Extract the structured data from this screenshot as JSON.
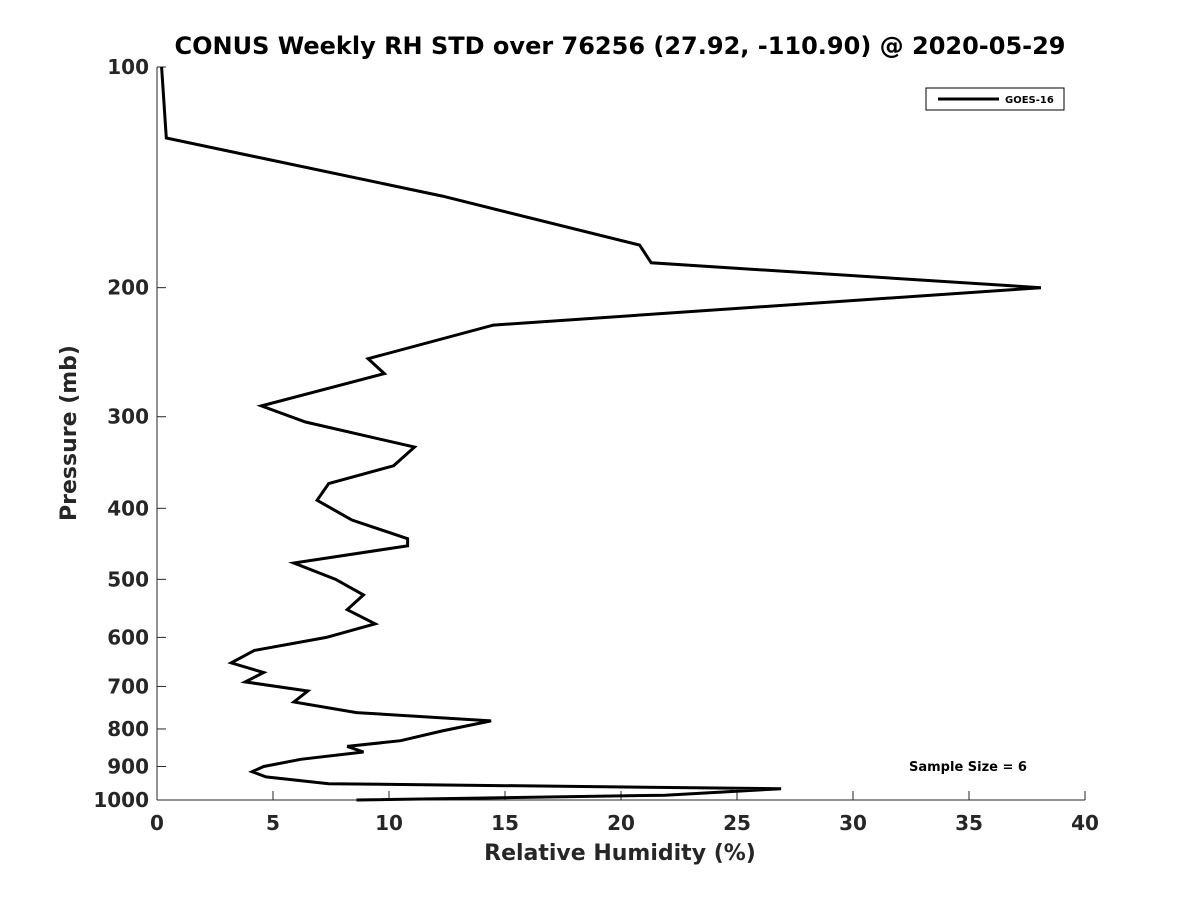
{
  "chart_data": {
    "type": "line",
    "title": "CONUS Weekly RH STD over 76256 (27.92, -110.90) @ 2020-05-29",
    "xlabel": "Relative Humidity (%)",
    "ylabel": "Pressure (mb)",
    "xlim": [
      0,
      40
    ],
    "ylim": [
      100,
      1000
    ],
    "y_scale": "log",
    "y_reversed": true,
    "grid": false,
    "x_ticks": [
      0,
      5,
      10,
      15,
      20,
      25,
      30,
      35,
      40
    ],
    "x_tick_labels": [
      "0",
      "5",
      "10",
      "15",
      "20",
      "25",
      "30",
      "35",
      "40"
    ],
    "y_ticks": [
      100,
      200,
      300,
      400,
      500,
      600,
      700,
      800,
      900,
      1000
    ],
    "y_tick_labels": [
      "100",
      "200",
      "300",
      "400",
      "500",
      "600",
      "700",
      "800",
      "900",
      "1000"
    ],
    "legend": {
      "position": "top-right",
      "entries": [
        "GOES-16"
      ]
    },
    "annotation": "Sample Size = 6",
    "series": [
      {
        "name": "GOES-16",
        "color": "#000000",
        "points": [
          [
            0.2,
            100
          ],
          [
            0.4,
            125
          ],
          [
            12.3,
            150
          ],
          [
            20.8,
            175
          ],
          [
            21.3,
            185
          ],
          [
            38.1,
            200
          ],
          [
            14.5,
            225
          ],
          [
            9.1,
            250
          ],
          [
            9.8,
            262
          ],
          [
            4.5,
            290
          ],
          [
            6.4,
            305
          ],
          [
            11.1,
            330
          ],
          [
            10.2,
            350
          ],
          [
            7.4,
            370
          ],
          [
            6.9,
            390
          ],
          [
            8.4,
            415
          ],
          [
            10.8,
            440
          ],
          [
            10.8,
            450
          ],
          [
            5.9,
            475
          ],
          [
            7.7,
            500
          ],
          [
            8.9,
            525
          ],
          [
            8.2,
            550
          ],
          [
            9.4,
            575
          ],
          [
            7.3,
            600
          ],
          [
            4.2,
            625
          ],
          [
            3.2,
            650
          ],
          [
            4.6,
            670
          ],
          [
            3.8,
            690
          ],
          [
            6.5,
            710
          ],
          [
            5.9,
            735
          ],
          [
            8.6,
            760
          ],
          [
            14.4,
            780
          ],
          [
            12.3,
            805
          ],
          [
            10.5,
            830
          ],
          [
            8.2,
            845
          ],
          [
            8.9,
            860
          ],
          [
            6.2,
            880
          ],
          [
            4.6,
            900
          ],
          [
            4.1,
            915
          ],
          [
            4.7,
            930
          ],
          [
            7.4,
            950
          ],
          [
            26.9,
            965
          ],
          [
            21.9,
            985
          ],
          [
            8.6,
            1000
          ]
        ]
      }
    ]
  }
}
